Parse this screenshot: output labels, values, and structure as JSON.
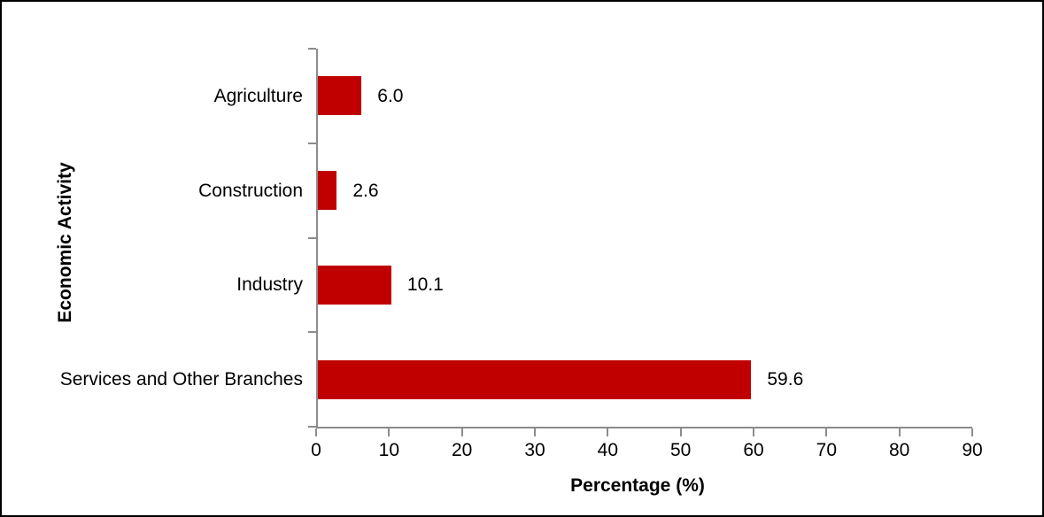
{
  "figure": {
    "background": "#FFFFFF",
    "border_color": "#000000",
    "text_color": "#000000"
  },
  "chart_data": {
    "type": "bar",
    "orientation": "horizontal",
    "title": "",
    "categories": [
      "Agriculture",
      "Construction",
      "Industry",
      "Services and Other Branches"
    ],
    "values": [
      6.0,
      2.6,
      10.1,
      59.6
    ],
    "value_labels": [
      "6.0",
      "2.6",
      "10.1",
      "59.6"
    ],
    "xlabel": "Percentage (%)",
    "ylabel": "Economic Activity",
    "xlim": [
      0,
      90
    ],
    "x_ticks": [
      0,
      10,
      20,
      30,
      40,
      50,
      60,
      70,
      80,
      90
    ],
    "x_tick_labels": [
      "0",
      "10",
      "20",
      "30",
      "40",
      "50",
      "60",
      "70",
      "80",
      "90"
    ],
    "grid": false,
    "legend": null,
    "data_labels_shown": true,
    "bar_color": "#C00000",
    "axis_color": "#8C8C8C"
  }
}
